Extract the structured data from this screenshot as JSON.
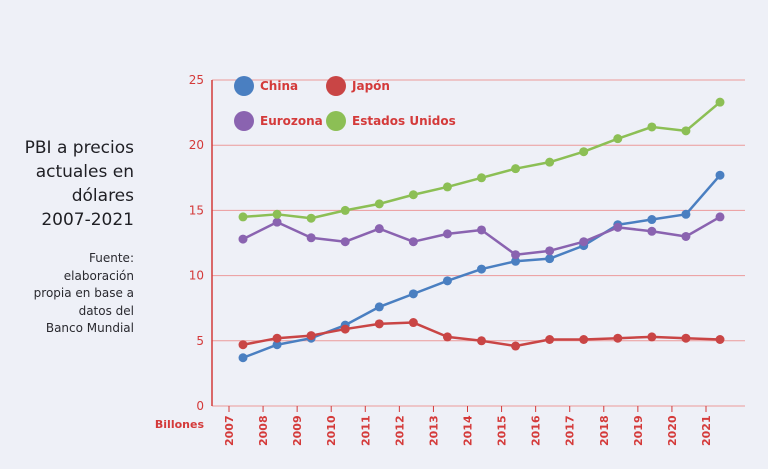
{
  "title_lines": [
    "PBI a precios",
    "actuales en",
    "dólares",
    "2007-2021"
  ],
  "source_lines": [
    "Fuente:",
    "elaboración",
    "propia en base a",
    "datos del",
    "Banco Mundial"
  ],
  "chart_data": {
    "type": "line",
    "x": [
      "2007",
      "2008",
      "2009",
      "2010",
      "2011",
      "2012",
      "2013",
      "2014",
      "2015",
      "2016",
      "2017",
      "2018",
      "2019",
      "2020",
      "2021"
    ],
    "ylim": [
      0,
      25
    ],
    "yticks": [
      "0",
      "5",
      "10",
      "15",
      "20",
      "25"
    ],
    "y_unit_label": "Billones",
    "grid": true,
    "legend_position": "top-left",
    "series": [
      {
        "name": "China",
        "color": "#4a7fc1",
        "values": [
          3.7,
          4.7,
          5.2,
          6.2,
          7.6,
          8.6,
          9.6,
          10.5,
          11.1,
          11.3,
          12.3,
          13.9,
          14.3,
          14.7,
          17.7
        ]
      },
      {
        "name": "Japón",
        "color": "#c94545",
        "values": [
          4.7,
          5.2,
          5.4,
          5.9,
          6.3,
          6.4,
          5.3,
          5.0,
          4.6,
          5.1,
          5.1,
          5.2,
          5.3,
          5.2,
          5.1
        ]
      },
      {
        "name": "Eurozona",
        "color": "#8a63b0",
        "values": [
          12.8,
          14.1,
          12.9,
          12.6,
          13.6,
          12.6,
          13.2,
          13.5,
          11.6,
          11.9,
          12.6,
          13.7,
          13.4,
          13.0,
          14.5
        ]
      },
      {
        "name": "Estados Unidos",
        "color": "#8cbf55",
        "values": [
          14.5,
          14.7,
          14.4,
          15.0,
          15.5,
          16.2,
          16.8,
          17.5,
          18.2,
          18.7,
          19.5,
          20.5,
          21.4,
          21.1,
          23.3
        ]
      }
    ]
  }
}
